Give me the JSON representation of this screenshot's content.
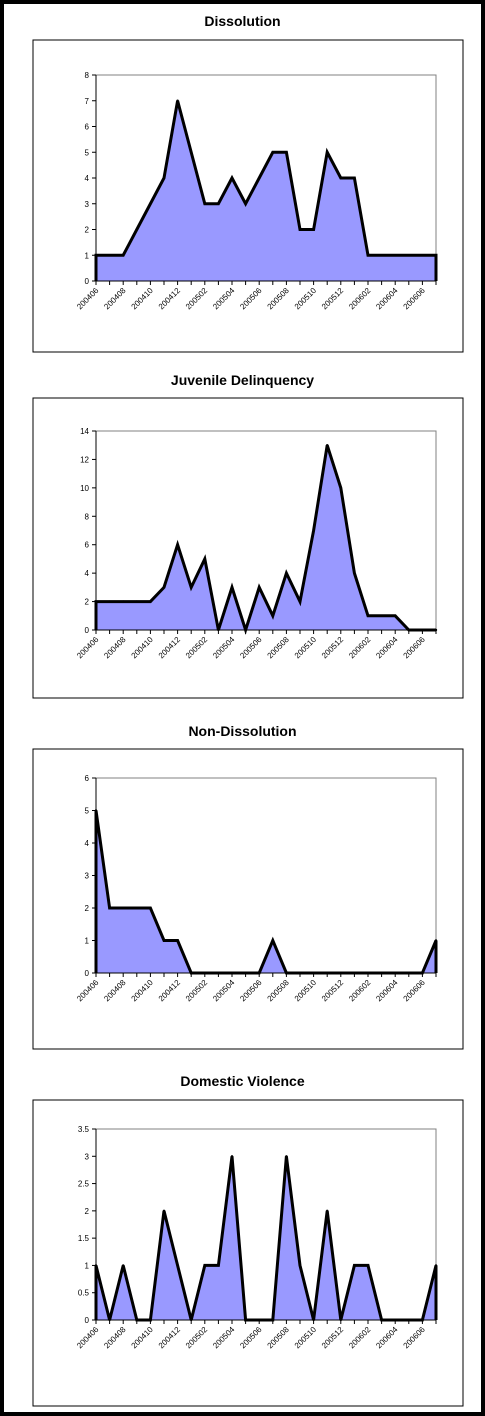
{
  "chart_data": [
    {
      "type": "area",
      "title": "Dissolution",
      "xlabel": "",
      "ylabel": "",
      "x": [
        "200406",
        "200407",
        "200408",
        "200409",
        "200410",
        "200411",
        "200412",
        "200501",
        "200502",
        "200503",
        "200504",
        "200505",
        "200506",
        "200507",
        "200508",
        "200509",
        "200510",
        "200511",
        "200512",
        "200601",
        "200602",
        "200603",
        "200604",
        "200605",
        "200606",
        "200607"
      ],
      "x_tick_labels": [
        "200406",
        "200408",
        "200410",
        "200412",
        "200502",
        "200504",
        "200506",
        "200508",
        "200510",
        "200512",
        "200602",
        "200604",
        "200606"
      ],
      "values": [
        1,
        1,
        1,
        2,
        3,
        4,
        7,
        5,
        3,
        3,
        4,
        3,
        4,
        5,
        5,
        2,
        2,
        5,
        4,
        4,
        1,
        1,
        1,
        1,
        1,
        1
      ],
      "ylim": [
        0,
        8
      ],
      "yticks": [
        "0",
        "1",
        "2",
        "3",
        "4",
        "5",
        "6",
        "7",
        "8"
      ],
      "grid": false,
      "legend": "none"
    },
    {
      "type": "area",
      "title": "Juvenile Delinquency",
      "xlabel": "",
      "ylabel": "",
      "x": [
        "200406",
        "200407",
        "200408",
        "200409",
        "200410",
        "200411",
        "200412",
        "200501",
        "200502",
        "200503",
        "200504",
        "200505",
        "200506",
        "200507",
        "200508",
        "200509",
        "200510",
        "200511",
        "200512",
        "200601",
        "200602",
        "200603",
        "200604",
        "200605",
        "200606",
        "200607"
      ],
      "x_tick_labels": [
        "200406",
        "200408",
        "200410",
        "200412",
        "200502",
        "200504",
        "200506",
        "200508",
        "200510",
        "200512",
        "200602",
        "200604",
        "200606"
      ],
      "values": [
        2,
        2,
        2,
        2,
        2,
        3,
        6,
        3,
        5,
        0,
        3,
        0,
        3,
        1,
        4,
        2,
        7,
        13,
        10,
        4,
        1,
        1,
        1,
        0,
        0,
        0
      ],
      "ylim": [
        0,
        14
      ],
      "yticks": [
        "0",
        "2",
        "4",
        "6",
        "8",
        "10",
        "12",
        "14"
      ],
      "grid": false,
      "legend": "none"
    },
    {
      "type": "area",
      "title": "Non-Dissolution",
      "xlabel": "",
      "ylabel": "",
      "x": [
        "200406",
        "200407",
        "200408",
        "200409",
        "200410",
        "200411",
        "200412",
        "200501",
        "200502",
        "200503",
        "200504",
        "200505",
        "200506",
        "200507",
        "200508",
        "200509",
        "200510",
        "200511",
        "200512",
        "200601",
        "200602",
        "200603",
        "200604",
        "200605",
        "200606",
        "200607"
      ],
      "x_tick_labels": [
        "200406",
        "200408",
        "200410",
        "200412",
        "200502",
        "200504",
        "200506",
        "200508",
        "200510",
        "200512",
        "200602",
        "200604",
        "200606"
      ],
      "values": [
        5,
        2,
        2,
        2,
        2,
        1,
        1,
        0,
        0,
        0,
        0,
        0,
        0,
        1,
        0,
        0,
        0,
        0,
        0,
        0,
        0,
        0,
        0,
        0,
        0,
        1
      ],
      "ylim": [
        0,
        6
      ],
      "yticks": [
        "0",
        "1",
        "2",
        "3",
        "4",
        "5",
        "6"
      ],
      "grid": false,
      "legend": "none"
    },
    {
      "type": "area",
      "title": "Domestic Violence",
      "xlabel": "",
      "ylabel": "",
      "x": [
        "200406",
        "200407",
        "200408",
        "200409",
        "200410",
        "200411",
        "200412",
        "200501",
        "200502",
        "200503",
        "200504",
        "200505",
        "200506",
        "200507",
        "200508",
        "200509",
        "200510",
        "200511",
        "200512",
        "200601",
        "200602",
        "200603",
        "200604",
        "200605",
        "200606",
        "200607"
      ],
      "x_tick_labels": [
        "200406",
        "200408",
        "200410",
        "200412",
        "200502",
        "200504",
        "200506",
        "200508",
        "200510",
        "200512",
        "200602",
        "200604",
        "200606"
      ],
      "values": [
        1,
        0,
        1,
        0,
        0,
        2,
        1,
        0,
        1,
        1,
        3,
        0,
        0,
        0,
        3,
        1,
        0,
        2,
        0,
        1,
        1,
        0,
        0,
        0,
        0,
        1
      ],
      "ylim": [
        0,
        3.5
      ],
      "yticks": [
        "0",
        "0.5",
        "1",
        "1.5",
        "2",
        "2.5",
        "3",
        "3.5"
      ],
      "grid": false,
      "legend": "none"
    }
  ],
  "colors": {
    "fill": "#9999ff",
    "line": "#000000",
    "axis": "#808080",
    "text": "#000000"
  }
}
